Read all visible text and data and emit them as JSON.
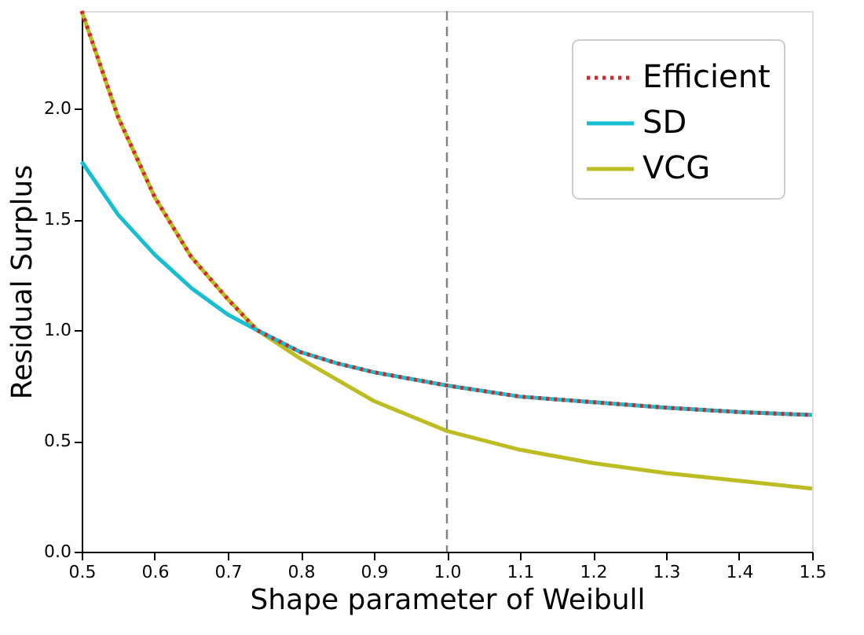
{
  "chart_data": {
    "type": "line",
    "xlabel": "Shape parameter of Weibull",
    "ylabel": "Residual Surplus",
    "xlim": [
      0.5,
      1.5
    ],
    "ylim": [
      0,
      2.44
    ],
    "xticks": [
      0.5,
      0.6,
      0.7,
      0.8,
      0.9,
      {
        "value": 1.0,
        "label": "1.0"
      },
      1.1,
      1.2,
      1.3,
      1.4,
      1.5
    ],
    "yticks": [
      {
        "value": 0,
        "label": "0.0"
      },
      0.5,
      {
        "value": 1,
        "label": "1.0"
      },
      1.5,
      {
        "value": 2,
        "label": "2.0"
      }
    ],
    "grid": false,
    "legend": "top right",
    "marker": "none",
    "ref_lines": [
      {
        "axis": "x",
        "value": 1.0,
        "color": "#808080",
        "line_style": "dashed"
      }
    ],
    "series": [
      {
        "name": "Efficient",
        "color": "#d62728",
        "line_style": "dotted",
        "x": [
          0.5,
          0.55,
          0.6,
          0.65,
          0.7,
          0.74,
          0.8,
          0.85,
          0.9,
          0.95,
          1.0,
          1.1,
          1.2,
          1.3,
          1.4,
          1.5
        ],
        "values": [
          2.44,
          1.96,
          1.6,
          1.33,
          1.14,
          1.0,
          0.9,
          0.85,
          0.81,
          0.78,
          0.75,
          0.7,
          0.675,
          0.65,
          0.63,
          0.617
        ]
      },
      {
        "name": "SD",
        "color": "#17becf",
        "line_style": "solid",
        "x": [
          0.5,
          0.55,
          0.6,
          0.65,
          0.7,
          0.74,
          0.8,
          0.85,
          0.9,
          0.95,
          1.0,
          1.1,
          1.2,
          1.3,
          1.4,
          1.5
        ],
        "values": [
          1.76,
          1.52,
          1.34,
          1.19,
          1.07,
          1.0,
          0.9,
          0.85,
          0.81,
          0.78,
          0.75,
          0.7,
          0.675,
          0.65,
          0.63,
          0.617
        ]
      },
      {
        "name": "VCG",
        "color": "#bcbd22",
        "line_style": "solid",
        "x": [
          0.5,
          0.55,
          0.6,
          0.65,
          0.7,
          0.74,
          0.8,
          0.9,
          1.0,
          1.1,
          1.2,
          1.3,
          1.4,
          1.5
        ],
        "values": [
          2.44,
          1.96,
          1.6,
          1.33,
          1.14,
          1.0,
          0.87,
          0.68,
          0.545,
          0.46,
          0.4,
          0.355,
          0.32,
          0.285
        ]
      }
    ]
  }
}
